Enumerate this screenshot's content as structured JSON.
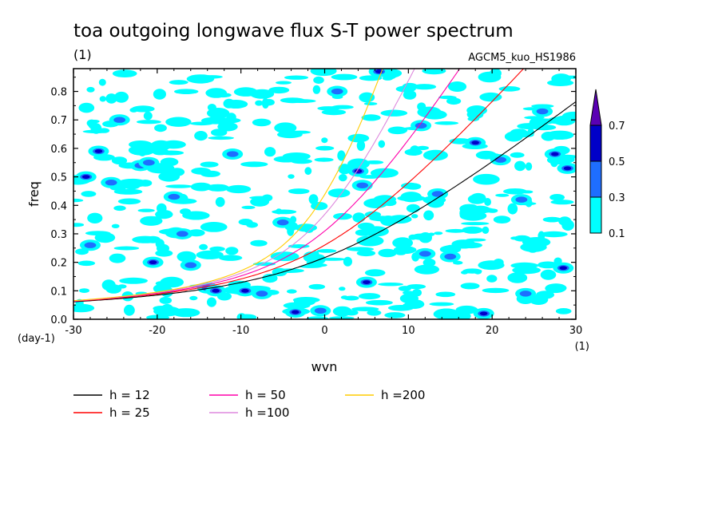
{
  "chart_data": {
    "type": "heatmap",
    "title": "toa outgoing longwave flux S-T power spectrum",
    "title_unit": "(1)",
    "model_label": "AGCM5_kuo_HS1986",
    "xlabel": "wvn",
    "ylabel": "freq",
    "x_unit": "(1)",
    "y_unit": "(day-1)",
    "xlim": [
      -30,
      30
    ],
    "ylim": [
      0,
      0.88
    ],
    "x_ticks": [
      -30,
      -20,
      -10,
      0,
      10,
      20,
      30
    ],
    "x_tick_labels": [
      "-30",
      "-20",
      "-10",
      "0",
      "10",
      "20",
      "30"
    ],
    "y_ticks": [
      0.0,
      0.1,
      0.2,
      0.3,
      0.4,
      0.5,
      0.6,
      0.7,
      0.8
    ],
    "y_tick_labels": [
      "0.0",
      "0.1",
      "0.2",
      "0.3",
      "0.4",
      "0.5",
      "0.6",
      "0.7",
      "0.8"
    ],
    "grid": false,
    "colorbar": {
      "levels": [
        0.1,
        0.3,
        0.5,
        0.7
      ],
      "level_labels": [
        "0.1",
        "0.3",
        "0.5",
        "0.7"
      ],
      "colors": [
        "#00ffff",
        "#1e6eff",
        "#0000c8",
        "#5a00b4"
      ],
      "extend": "max"
    },
    "blobs": [
      {
        "x": -28.5,
        "y": 0.5,
        "level": 2
      },
      {
        "x": -27.0,
        "y": 0.59,
        "level": 2
      },
      {
        "x": -25.5,
        "y": 0.48,
        "level": 1
      },
      {
        "x": -24.5,
        "y": 0.7,
        "level": 1
      },
      {
        "x": -22.0,
        "y": 0.54,
        "level": 1
      },
      {
        "x": -21.0,
        "y": 0.55,
        "level": 1
      },
      {
        "x": -20.5,
        "y": 0.2,
        "level": 2
      },
      {
        "x": -18.0,
        "y": 0.43,
        "level": 1
      },
      {
        "x": -17.0,
        "y": 0.3,
        "level": 1
      },
      {
        "x": -16.0,
        "y": 0.19,
        "level": 1
      },
      {
        "x": -14.0,
        "y": 0.11,
        "level": 1
      },
      {
        "x": -13.0,
        "y": 0.1,
        "level": 2
      },
      {
        "x": -11.0,
        "y": 0.58,
        "level": 1
      },
      {
        "x": -9.5,
        "y": 0.1,
        "level": 2
      },
      {
        "x": -7.5,
        "y": 0.09,
        "level": 1
      },
      {
        "x": -3.5,
        "y": 0.025,
        "level": 2
      },
      {
        "x": -5.0,
        "y": 0.34,
        "level": 1
      },
      {
        "x": 1.5,
        "y": 0.8,
        "level": 1
      },
      {
        "x": 4.0,
        "y": 0.52,
        "level": 3
      },
      {
        "x": 4.5,
        "y": 0.47,
        "level": 1
      },
      {
        "x": 5.0,
        "y": 0.13,
        "level": 2
      },
      {
        "x": 6.5,
        "y": 0.87,
        "level": 2
      },
      {
        "x": 11.5,
        "y": 0.68,
        "level": 1
      },
      {
        "x": 12.0,
        "y": 0.23,
        "level": 1
      },
      {
        "x": 13.5,
        "y": 0.44,
        "level": 1
      },
      {
        "x": 15.0,
        "y": 0.22,
        "level": 1
      },
      {
        "x": 18.0,
        "y": 0.62,
        "level": 2
      },
      {
        "x": 21.0,
        "y": 0.56,
        "level": 1
      },
      {
        "x": 23.5,
        "y": 0.42,
        "level": 1
      },
      {
        "x": 26.0,
        "y": 0.73,
        "level": 1
      },
      {
        "x": 27.5,
        "y": 0.58,
        "level": 2
      },
      {
        "x": 29.0,
        "y": 0.53,
        "level": 2
      },
      {
        "x": 28.5,
        "y": 0.18,
        "level": 2
      },
      {
        "x": 19.0,
        "y": 0.02,
        "level": 2
      },
      {
        "x": 24.0,
        "y": 0.09,
        "level": 1
      },
      {
        "x": -28.0,
        "y": 0.26,
        "level": 1
      },
      {
        "x": -0.5,
        "y": 0.03,
        "level": 1
      }
    ],
    "series": [
      {
        "name": "h = 12",
        "h": 12,
        "color": "#000000"
      },
      {
        "name": "h = 25",
        "h": 25,
        "color": "#ff0000"
      },
      {
        "name": "h = 50",
        "h": 50,
        "color": "#ff00aa"
      },
      {
        "name": "h =100",
        "h": 100,
        "color": "#dd88dd"
      },
      {
        "name": "h =200",
        "h": 200,
        "color": "#ffcc00"
      }
    ]
  }
}
